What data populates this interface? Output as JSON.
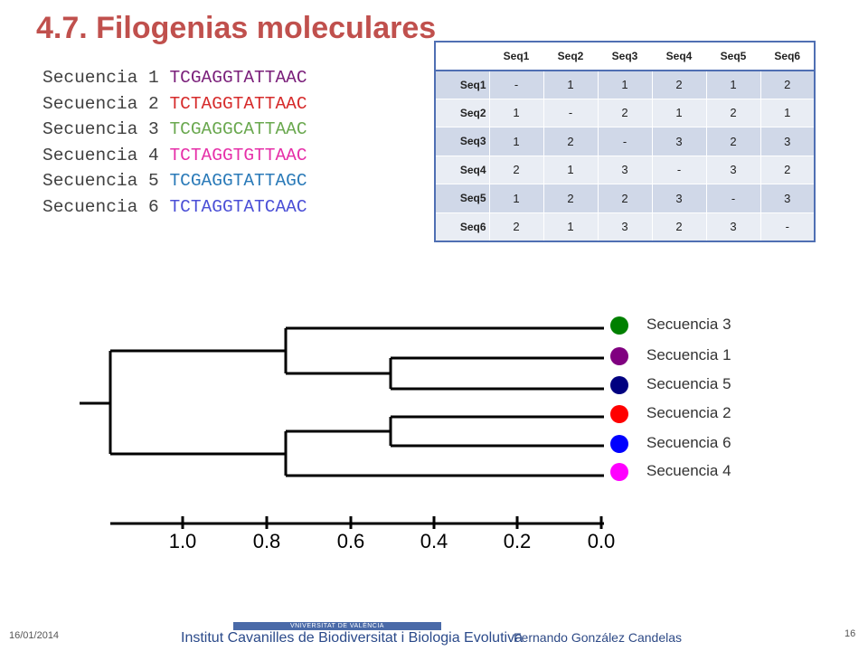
{
  "title": "4.7. Filogenias moleculares",
  "sequences": [
    {
      "name": "Secuencia 1",
      "seq": "TCGAGGTATTAAC",
      "color": "#7a1f7a"
    },
    {
      "name": "Secuencia 2",
      "seq": "TCTAGGTATTAAC",
      "color": "#d62b2b"
    },
    {
      "name": "Secuencia 3",
      "seq": "TCGAGGCATTAAC",
      "color": "#6aa84f"
    },
    {
      "name": "Secuencia 4",
      "seq": "TCTAGGTGTTAAC",
      "color": "#e62fa8"
    },
    {
      "name": "Secuencia 5",
      "seq": "TCGAGGTATTAGC",
      "color": "#2a7ab8"
    },
    {
      "name": "Secuencia 6",
      "seq": "TCTAGGTATCAAC",
      "color": "#4b4fd6"
    }
  ],
  "distance_table": {
    "headers": [
      "",
      "Seq1",
      "Seq2",
      "Seq3",
      "Seq4",
      "Seq5",
      "Seq6"
    ],
    "rows": [
      {
        "label": "Seq1",
        "cells": [
          "-",
          "1",
          "1",
          "2",
          "1",
          "2"
        ]
      },
      {
        "label": "Seq2",
        "cells": [
          "1",
          "-",
          "2",
          "1",
          "2",
          "1"
        ]
      },
      {
        "label": "Seq3",
        "cells": [
          "1",
          "2",
          "-",
          "3",
          "2",
          "3"
        ]
      },
      {
        "label": "Seq4",
        "cells": [
          "2",
          "1",
          "3",
          "-",
          "3",
          "2"
        ]
      },
      {
        "label": "Seq5",
        "cells": [
          "1",
          "2",
          "2",
          "3",
          "-",
          "3"
        ]
      },
      {
        "label": "Seq6",
        "cells": [
          "2",
          "1",
          "3",
          "2",
          "3",
          "-"
        ]
      }
    ]
  },
  "tree": {
    "leaves": [
      {
        "label": "Secuencia 3",
        "color": "#008000"
      },
      {
        "label": "Secuencia 1",
        "color": "#800080"
      },
      {
        "label": "Secuencia 5",
        "color": "#000080"
      },
      {
        "label": "Secuencia 2",
        "color": "#ff0000"
      },
      {
        "label": "Secuencia 6",
        "color": "#0000ff"
      },
      {
        "label": "Secuencia 4",
        "color": "#ff00ff"
      }
    ],
    "axis_ticks": [
      "1.0",
      "0.8",
      "0.6",
      "0.4",
      "0.2",
      "0.0"
    ]
  },
  "footer": {
    "date": "16/01/2014",
    "university": "VNIVERSITAT DE VALÈNCIA",
    "institute": "Institut Cavanilles de Biodiversitat i Biologia Evolutiva",
    "author": "Fernando González Candelas",
    "page": "16"
  }
}
